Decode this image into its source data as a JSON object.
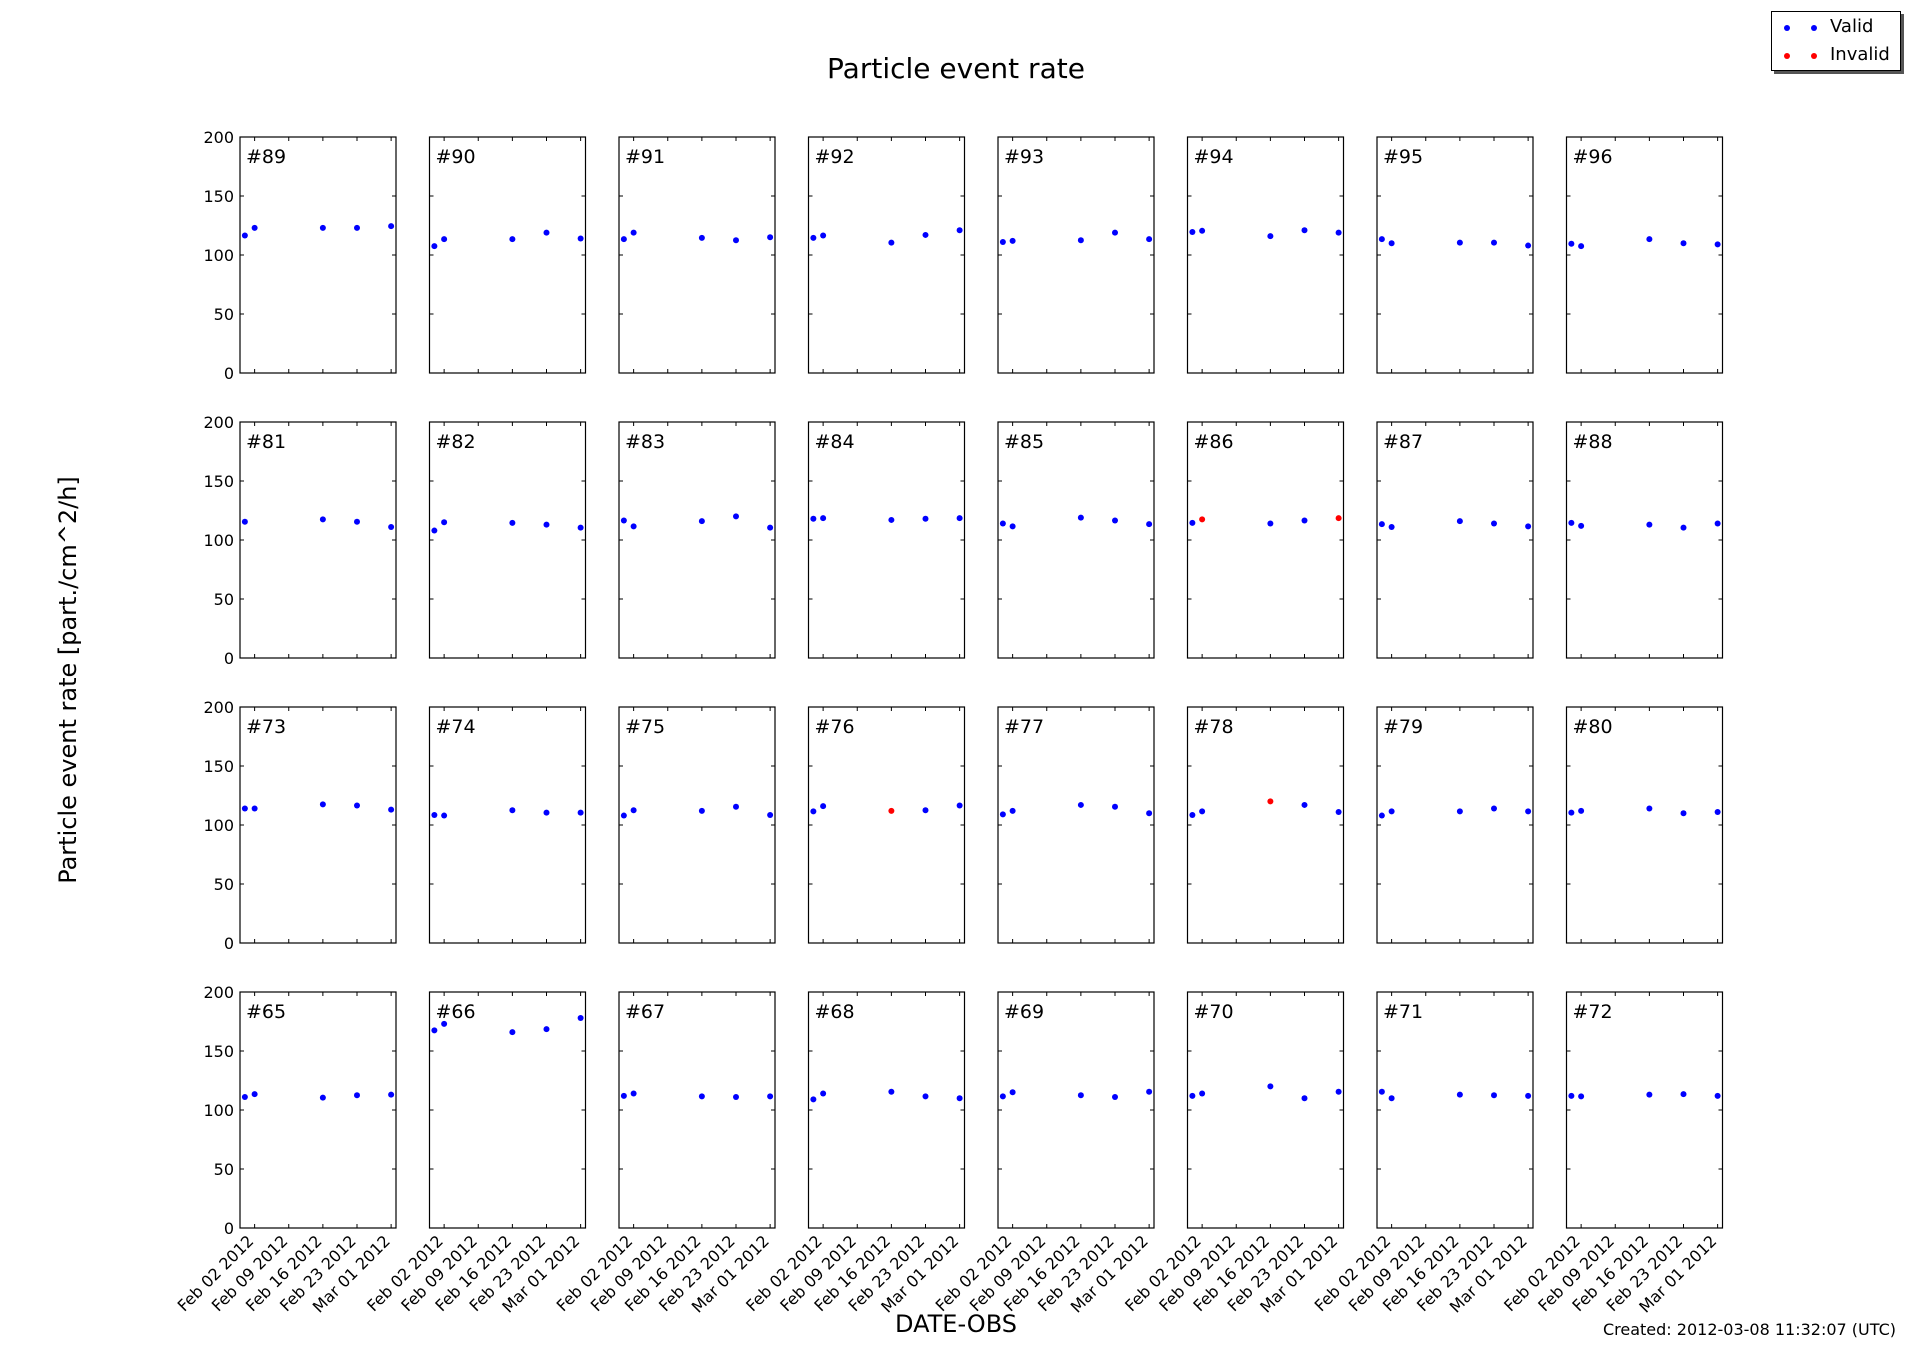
{
  "chart_data": {
    "type": "scatter",
    "title": "Particle event rate",
    "xlabel": "DATE-OBS",
    "ylabel": "Particle event rate [part./cm^2/h]",
    "ylim": [
      0,
      200
    ],
    "y_ticks": [
      0,
      50,
      100,
      150,
      200
    ],
    "x_range": [
      "2012-01-30",
      "2012-03-02"
    ],
    "x_ticks": [
      "2012-02-02",
      "2012-02-09",
      "2012-02-16",
      "2012-02-23",
      "2012-03-01"
    ],
    "x_tick_labels": [
      "Feb 02 2012",
      "Feb 09 2012",
      "Feb 16 2012",
      "Feb 23 2012",
      "Mar 01 2012"
    ],
    "grid": false,
    "legend_position": "top-right",
    "series": [
      {
        "name": "Valid",
        "color": "#0000ff"
      },
      {
        "name": "Invalid",
        "color": "#ff0000"
      }
    ],
    "panels": [
      {
        "label": "#89",
        "points": [
          [
            "2012-01-31",
            116.5,
            "valid"
          ],
          [
            "2012-02-02",
            123,
            "valid"
          ],
          [
            "2012-02-16",
            123,
            "valid"
          ],
          [
            "2012-02-23",
            123,
            "valid"
          ],
          [
            "2012-03-01",
            124.5,
            "valid"
          ]
        ]
      },
      {
        "label": "#90",
        "points": [
          [
            "2012-01-31",
            107.5,
            "valid"
          ],
          [
            "2012-02-02",
            113.5,
            "valid"
          ],
          [
            "2012-02-16",
            113.5,
            "valid"
          ],
          [
            "2012-02-23",
            119,
            "valid"
          ],
          [
            "2012-03-01",
            114,
            "valid"
          ]
        ]
      },
      {
        "label": "#91",
        "points": [
          [
            "2012-01-31",
            113.5,
            "valid"
          ],
          [
            "2012-02-02",
            119,
            "valid"
          ],
          [
            "2012-02-16",
            114.5,
            "valid"
          ],
          [
            "2012-02-23",
            112.5,
            "valid"
          ],
          [
            "2012-03-01",
            115,
            "valid"
          ]
        ]
      },
      {
        "label": "#92",
        "points": [
          [
            "2012-01-31",
            114.5,
            "valid"
          ],
          [
            "2012-02-02",
            116.5,
            "valid"
          ],
          [
            "2012-02-16",
            110.5,
            "valid"
          ],
          [
            "2012-02-23",
            117,
            "valid"
          ],
          [
            "2012-03-01",
            121,
            "valid"
          ]
        ]
      },
      {
        "label": "#93",
        "points": [
          [
            "2012-01-31",
            111,
            "valid"
          ],
          [
            "2012-02-02",
            112,
            "valid"
          ],
          [
            "2012-02-16",
            112.5,
            "valid"
          ],
          [
            "2012-02-23",
            119,
            "valid"
          ],
          [
            "2012-03-01",
            113.5,
            "valid"
          ]
        ]
      },
      {
        "label": "#94",
        "points": [
          [
            "2012-01-31",
            119.5,
            "valid"
          ],
          [
            "2012-02-02",
            120.5,
            "valid"
          ],
          [
            "2012-02-16",
            116,
            "valid"
          ],
          [
            "2012-02-23",
            121,
            "valid"
          ],
          [
            "2012-03-01",
            119,
            "valid"
          ]
        ]
      },
      {
        "label": "#95",
        "points": [
          [
            "2012-01-31",
            113.5,
            "valid"
          ],
          [
            "2012-02-02",
            110,
            "valid"
          ],
          [
            "2012-02-16",
            110.5,
            "valid"
          ],
          [
            "2012-02-23",
            110.5,
            "valid"
          ],
          [
            "2012-03-01",
            108,
            "valid"
          ]
        ]
      },
      {
        "label": "#96",
        "points": [
          [
            "2012-01-31",
            109.5,
            "valid"
          ],
          [
            "2012-02-02",
            107.5,
            "valid"
          ],
          [
            "2012-02-16",
            113.5,
            "valid"
          ],
          [
            "2012-02-23",
            110,
            "valid"
          ],
          [
            "2012-03-01",
            109,
            "valid"
          ]
        ]
      },
      {
        "label": "#81",
        "points": [
          [
            "2012-01-31",
            115.5,
            "valid"
          ],
          [
            "2012-02-16",
            117.5,
            "valid"
          ],
          [
            "2012-02-23",
            115.5,
            "valid"
          ],
          [
            "2012-03-01",
            111,
            "valid"
          ]
        ]
      },
      {
        "label": "#82",
        "points": [
          [
            "2012-01-31",
            108,
            "valid"
          ],
          [
            "2012-02-02",
            115,
            "valid"
          ],
          [
            "2012-02-16",
            114.5,
            "valid"
          ],
          [
            "2012-02-23",
            113,
            "valid"
          ],
          [
            "2012-03-01",
            110.5,
            "valid"
          ]
        ]
      },
      {
        "label": "#83",
        "points": [
          [
            "2012-01-31",
            116.5,
            "valid"
          ],
          [
            "2012-02-02",
            111.5,
            "valid"
          ],
          [
            "2012-02-16",
            116,
            "valid"
          ],
          [
            "2012-02-23",
            120,
            "valid"
          ],
          [
            "2012-03-01",
            110.5,
            "valid"
          ]
        ]
      },
      {
        "label": "#84",
        "points": [
          [
            "2012-01-31",
            118,
            "valid"
          ],
          [
            "2012-02-02",
            118.5,
            "valid"
          ],
          [
            "2012-02-16",
            117,
            "valid"
          ],
          [
            "2012-02-23",
            118,
            "valid"
          ],
          [
            "2012-03-01",
            118.5,
            "valid"
          ]
        ]
      },
      {
        "label": "#85",
        "points": [
          [
            "2012-01-31",
            114,
            "valid"
          ],
          [
            "2012-02-02",
            111.5,
            "valid"
          ],
          [
            "2012-02-16",
            119,
            "valid"
          ],
          [
            "2012-02-23",
            116.5,
            "valid"
          ],
          [
            "2012-03-01",
            113.5,
            "valid"
          ]
        ]
      },
      {
        "label": "#86",
        "points": [
          [
            "2012-01-31",
            114.5,
            "valid"
          ],
          [
            "2012-02-02",
            117.5,
            "invalid"
          ],
          [
            "2012-02-16",
            114,
            "valid"
          ],
          [
            "2012-02-23",
            116.5,
            "valid"
          ],
          [
            "2012-03-01",
            118.5,
            "invalid"
          ]
        ]
      },
      {
        "label": "#87",
        "points": [
          [
            "2012-01-31",
            113.5,
            "valid"
          ],
          [
            "2012-02-02",
            111,
            "valid"
          ],
          [
            "2012-02-16",
            116,
            "valid"
          ],
          [
            "2012-02-23",
            114,
            "valid"
          ],
          [
            "2012-03-01",
            111.5,
            "valid"
          ]
        ]
      },
      {
        "label": "#88",
        "points": [
          [
            "2012-01-31",
            114.5,
            "valid"
          ],
          [
            "2012-02-02",
            112,
            "valid"
          ],
          [
            "2012-02-16",
            113,
            "valid"
          ],
          [
            "2012-02-23",
            110.5,
            "valid"
          ],
          [
            "2012-03-01",
            114,
            "valid"
          ]
        ]
      },
      {
        "label": "#73",
        "points": [
          [
            "2012-01-31",
            114,
            "valid"
          ],
          [
            "2012-02-02",
            114,
            "valid"
          ],
          [
            "2012-02-16",
            117.5,
            "valid"
          ],
          [
            "2012-02-23",
            116.5,
            "valid"
          ],
          [
            "2012-03-01",
            113,
            "valid"
          ]
        ]
      },
      {
        "label": "#74",
        "points": [
          [
            "2012-01-31",
            108.5,
            "valid"
          ],
          [
            "2012-02-02",
            108,
            "valid"
          ],
          [
            "2012-02-16",
            112.5,
            "valid"
          ],
          [
            "2012-02-23",
            110.5,
            "valid"
          ],
          [
            "2012-03-01",
            110.5,
            "valid"
          ]
        ]
      },
      {
        "label": "#75",
        "points": [
          [
            "2012-01-31",
            108,
            "valid"
          ],
          [
            "2012-02-02",
            112.5,
            "valid"
          ],
          [
            "2012-02-16",
            112,
            "valid"
          ],
          [
            "2012-02-23",
            115.5,
            "valid"
          ],
          [
            "2012-03-01",
            108.5,
            "valid"
          ]
        ]
      },
      {
        "label": "#76",
        "points": [
          [
            "2012-01-31",
            111.5,
            "valid"
          ],
          [
            "2012-02-02",
            116,
            "valid"
          ],
          [
            "2012-02-16",
            112,
            "invalid"
          ],
          [
            "2012-02-23",
            112.5,
            "valid"
          ],
          [
            "2012-03-01",
            116.5,
            "valid"
          ]
        ]
      },
      {
        "label": "#77",
        "points": [
          [
            "2012-01-31",
            109,
            "valid"
          ],
          [
            "2012-02-02",
            112,
            "valid"
          ],
          [
            "2012-02-16",
            117,
            "valid"
          ],
          [
            "2012-02-23",
            115.5,
            "valid"
          ],
          [
            "2012-03-01",
            110,
            "valid"
          ]
        ]
      },
      {
        "label": "#78",
        "points": [
          [
            "2012-01-31",
            108.5,
            "valid"
          ],
          [
            "2012-02-02",
            111.5,
            "valid"
          ],
          [
            "2012-02-16",
            120,
            "invalid"
          ],
          [
            "2012-02-23",
            117,
            "valid"
          ],
          [
            "2012-03-01",
            111,
            "valid"
          ]
        ]
      },
      {
        "label": "#79",
        "points": [
          [
            "2012-01-31",
            108,
            "valid"
          ],
          [
            "2012-02-02",
            111.5,
            "valid"
          ],
          [
            "2012-02-16",
            111.5,
            "valid"
          ],
          [
            "2012-02-23",
            114,
            "valid"
          ],
          [
            "2012-03-01",
            111.5,
            "valid"
          ]
        ]
      },
      {
        "label": "#80",
        "points": [
          [
            "2012-01-31",
            110.5,
            "valid"
          ],
          [
            "2012-02-02",
            112,
            "valid"
          ],
          [
            "2012-02-16",
            114,
            "valid"
          ],
          [
            "2012-02-23",
            110,
            "valid"
          ],
          [
            "2012-03-01",
            111,
            "valid"
          ]
        ]
      },
      {
        "label": "#65",
        "points": [
          [
            "2012-01-31",
            111,
            "valid"
          ],
          [
            "2012-02-02",
            113.5,
            "valid"
          ],
          [
            "2012-02-16",
            110.5,
            "valid"
          ],
          [
            "2012-02-23",
            112.5,
            "valid"
          ],
          [
            "2012-03-01",
            113,
            "valid"
          ]
        ]
      },
      {
        "label": "#66",
        "points": [
          [
            "2012-01-31",
            167.5,
            "valid"
          ],
          [
            "2012-02-02",
            173,
            "valid"
          ],
          [
            "2012-02-16",
            166,
            "valid"
          ],
          [
            "2012-02-23",
            168.5,
            "valid"
          ],
          [
            "2012-03-01",
            178,
            "valid"
          ]
        ]
      },
      {
        "label": "#67",
        "points": [
          [
            "2012-01-31",
            112,
            "valid"
          ],
          [
            "2012-02-02",
            114,
            "valid"
          ],
          [
            "2012-02-16",
            111.5,
            "valid"
          ],
          [
            "2012-02-23",
            111,
            "valid"
          ],
          [
            "2012-03-01",
            111.5,
            "valid"
          ]
        ]
      },
      {
        "label": "#68",
        "points": [
          [
            "2012-01-31",
            109,
            "valid"
          ],
          [
            "2012-02-02",
            114,
            "valid"
          ],
          [
            "2012-02-16",
            115.5,
            "valid"
          ],
          [
            "2012-02-23",
            111.5,
            "valid"
          ],
          [
            "2012-03-01",
            110,
            "valid"
          ]
        ]
      },
      {
        "label": "#69",
        "points": [
          [
            "2012-01-31",
            111.5,
            "valid"
          ],
          [
            "2012-02-02",
            115,
            "valid"
          ],
          [
            "2012-02-16",
            112.5,
            "valid"
          ],
          [
            "2012-02-23",
            111,
            "valid"
          ],
          [
            "2012-03-01",
            115.5,
            "valid"
          ]
        ]
      },
      {
        "label": "#70",
        "points": [
          [
            "2012-01-31",
            112,
            "valid"
          ],
          [
            "2012-02-02",
            114,
            "valid"
          ],
          [
            "2012-02-16",
            120,
            "valid"
          ],
          [
            "2012-02-23",
            110,
            "valid"
          ],
          [
            "2012-03-01",
            115.5,
            "valid"
          ]
        ]
      },
      {
        "label": "#71",
        "points": [
          [
            "2012-01-31",
            115.5,
            "valid"
          ],
          [
            "2012-02-02",
            110,
            "valid"
          ],
          [
            "2012-02-16",
            113,
            "valid"
          ],
          [
            "2012-02-23",
            112.5,
            "valid"
          ],
          [
            "2012-03-01",
            112,
            "valid"
          ]
        ]
      },
      {
        "label": "#72",
        "points": [
          [
            "2012-01-31",
            112,
            "valid"
          ],
          [
            "2012-02-02",
            111.5,
            "valid"
          ],
          [
            "2012-02-16",
            113,
            "valid"
          ],
          [
            "2012-02-23",
            113.5,
            "valid"
          ],
          [
            "2012-03-01",
            112,
            "valid"
          ]
        ]
      }
    ]
  },
  "legend": {
    "valid_label": "Valid",
    "invalid_label": "Invalid",
    "valid_color": "#0000ff",
    "invalid_color": "#ff0000"
  },
  "footer": {
    "created": "Created: 2012-03-08 11:32:07 (UTC)"
  }
}
